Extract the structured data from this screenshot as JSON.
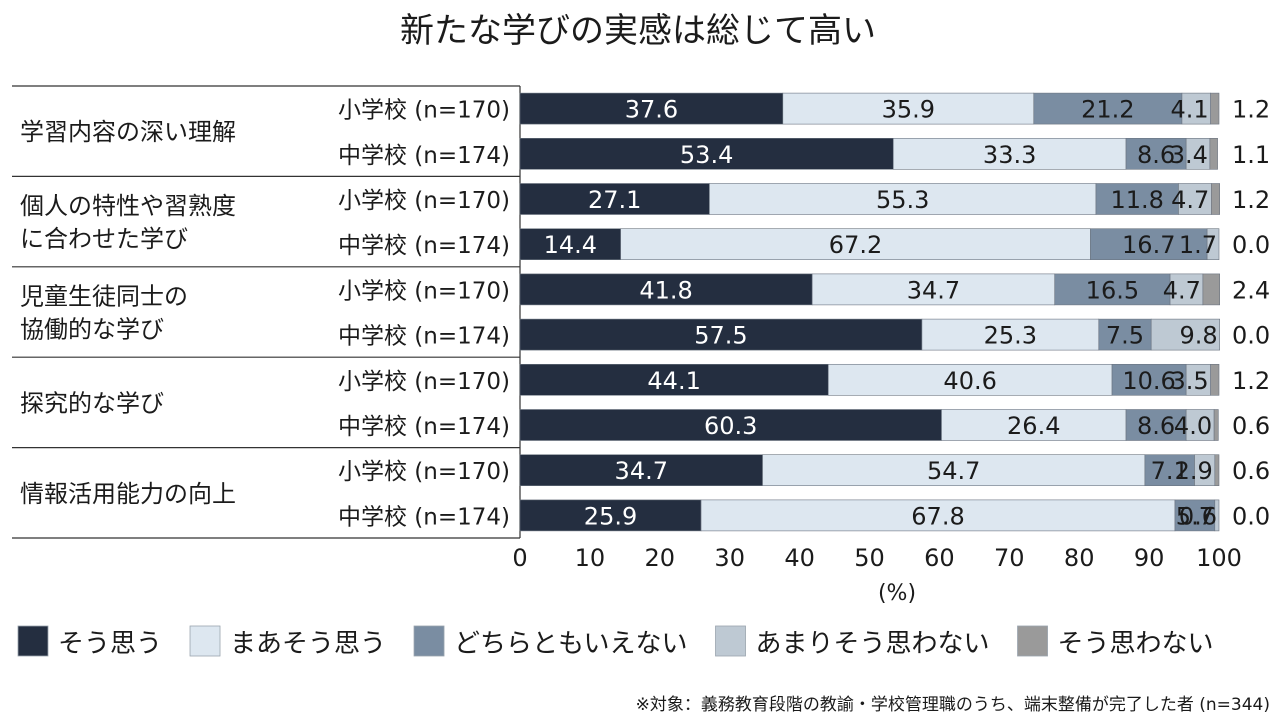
{
  "chart_data": {
    "type": "bar",
    "orientation": "horizontal",
    "stacked": true,
    "title": "新たな学びの実感は総じて高い",
    "x_unit": "(%)",
    "xlim": [
      0,
      100
    ],
    "x_ticks": [
      "0",
      "10",
      "20",
      "30",
      "40",
      "50",
      "60",
      "70",
      "80",
      "90",
      "100"
    ],
    "series": [
      {
        "name": "そう思う",
        "color": "#242e40"
      },
      {
        "name": "まあそう思う",
        "color": "#dde7f0"
      },
      {
        "name": "どちらともいえない",
        "color": "#7a8da2"
      },
      {
        "name": "あまりそう思わない",
        "color": "#bec9d3"
      },
      {
        "name": "そう思わない",
        "color": "#9a9a9a"
      }
    ],
    "groups": [
      {
        "label_lines": [
          "学習内容の深い理解"
        ],
        "rows": [
          {
            "label": "小学校 (n=170)",
            "values": [
              37.6,
              35.9,
              21.2,
              4.1,
              1.2
            ],
            "labels": [
              "37.6",
              "35.9",
              "21.2",
              "4.1",
              "1.2"
            ]
          },
          {
            "label": "中学校 (n=174)",
            "values": [
              53.4,
              33.3,
              8.6,
              3.4,
              1.1
            ],
            "labels": [
              "53.4",
              "33.3",
              "8.6",
              "3.4",
              "1.1"
            ]
          }
        ]
      },
      {
        "label_lines": [
          "個人の特性や習熟度",
          "に合わせた学び"
        ],
        "rows": [
          {
            "label": "小学校 (n=170)",
            "values": [
              27.1,
              55.3,
              11.8,
              4.7,
              1.2
            ],
            "labels": [
              "27.1",
              "55.3",
              "11.8",
              "4.7",
              "1.2"
            ]
          },
          {
            "label": "中学校 (n=174)",
            "values": [
              14.4,
              67.2,
              16.7,
              1.7,
              0.0
            ],
            "labels": [
              "14.4",
              "67.2",
              "16.7",
              "1.7",
              "0.0"
            ]
          }
        ]
      },
      {
        "label_lines": [
          "児童生徒同士の",
          "協働的な学び"
        ],
        "rows": [
          {
            "label": "小学校 (n=170)",
            "values": [
              41.8,
              34.7,
              16.5,
              4.7,
              2.4
            ],
            "labels": [
              "41.8",
              "34.7",
              "16.5",
              "4.7",
              "2.4"
            ]
          },
          {
            "label": "中学校 (n=174)",
            "values": [
              57.5,
              25.3,
              7.5,
              9.8,
              0.0
            ],
            "labels": [
              "57.5",
              "25.3",
              "7.5",
              "9.8",
              "0.0"
            ]
          }
        ]
      },
      {
        "label_lines": [
          "探究的な学び"
        ],
        "rows": [
          {
            "label": "小学校 (n=170)",
            "values": [
              44.1,
              40.6,
              10.6,
              3.5,
              1.2
            ],
            "labels": [
              "44.1",
              "40.6",
              "10.6",
              "3.5",
              "1.2"
            ]
          },
          {
            "label": "中学校 (n=174)",
            "values": [
              60.3,
              26.4,
              8.6,
              4.0,
              0.6
            ],
            "labels": [
              "60.3",
              "26.4",
              "8.6",
              "4.0",
              "0.6"
            ]
          }
        ]
      },
      {
        "label_lines": [
          "情報活用能力の向上"
        ],
        "rows": [
          {
            "label": "小学校 (n=170)",
            "values": [
              34.7,
              54.7,
              7.1,
              2.9,
              0.6
            ],
            "labels": [
              "34.7",
              "54.7",
              "7.1",
              "2.9",
              "0.6"
            ]
          },
          {
            "label": "中学校 (n=174)",
            "values": [
              25.9,
              67.8,
              5.7,
              0.6,
              0.0
            ],
            "labels": [
              "25.9",
              "67.8",
              "5.7",
              "0.6",
              "0.0"
            ]
          }
        ]
      }
    ],
    "legend_position": "bottom",
    "footnote": "※対象：義務教育段階の教諭・学校管理職のうち、端末整備が完了した者 (n=344)"
  }
}
